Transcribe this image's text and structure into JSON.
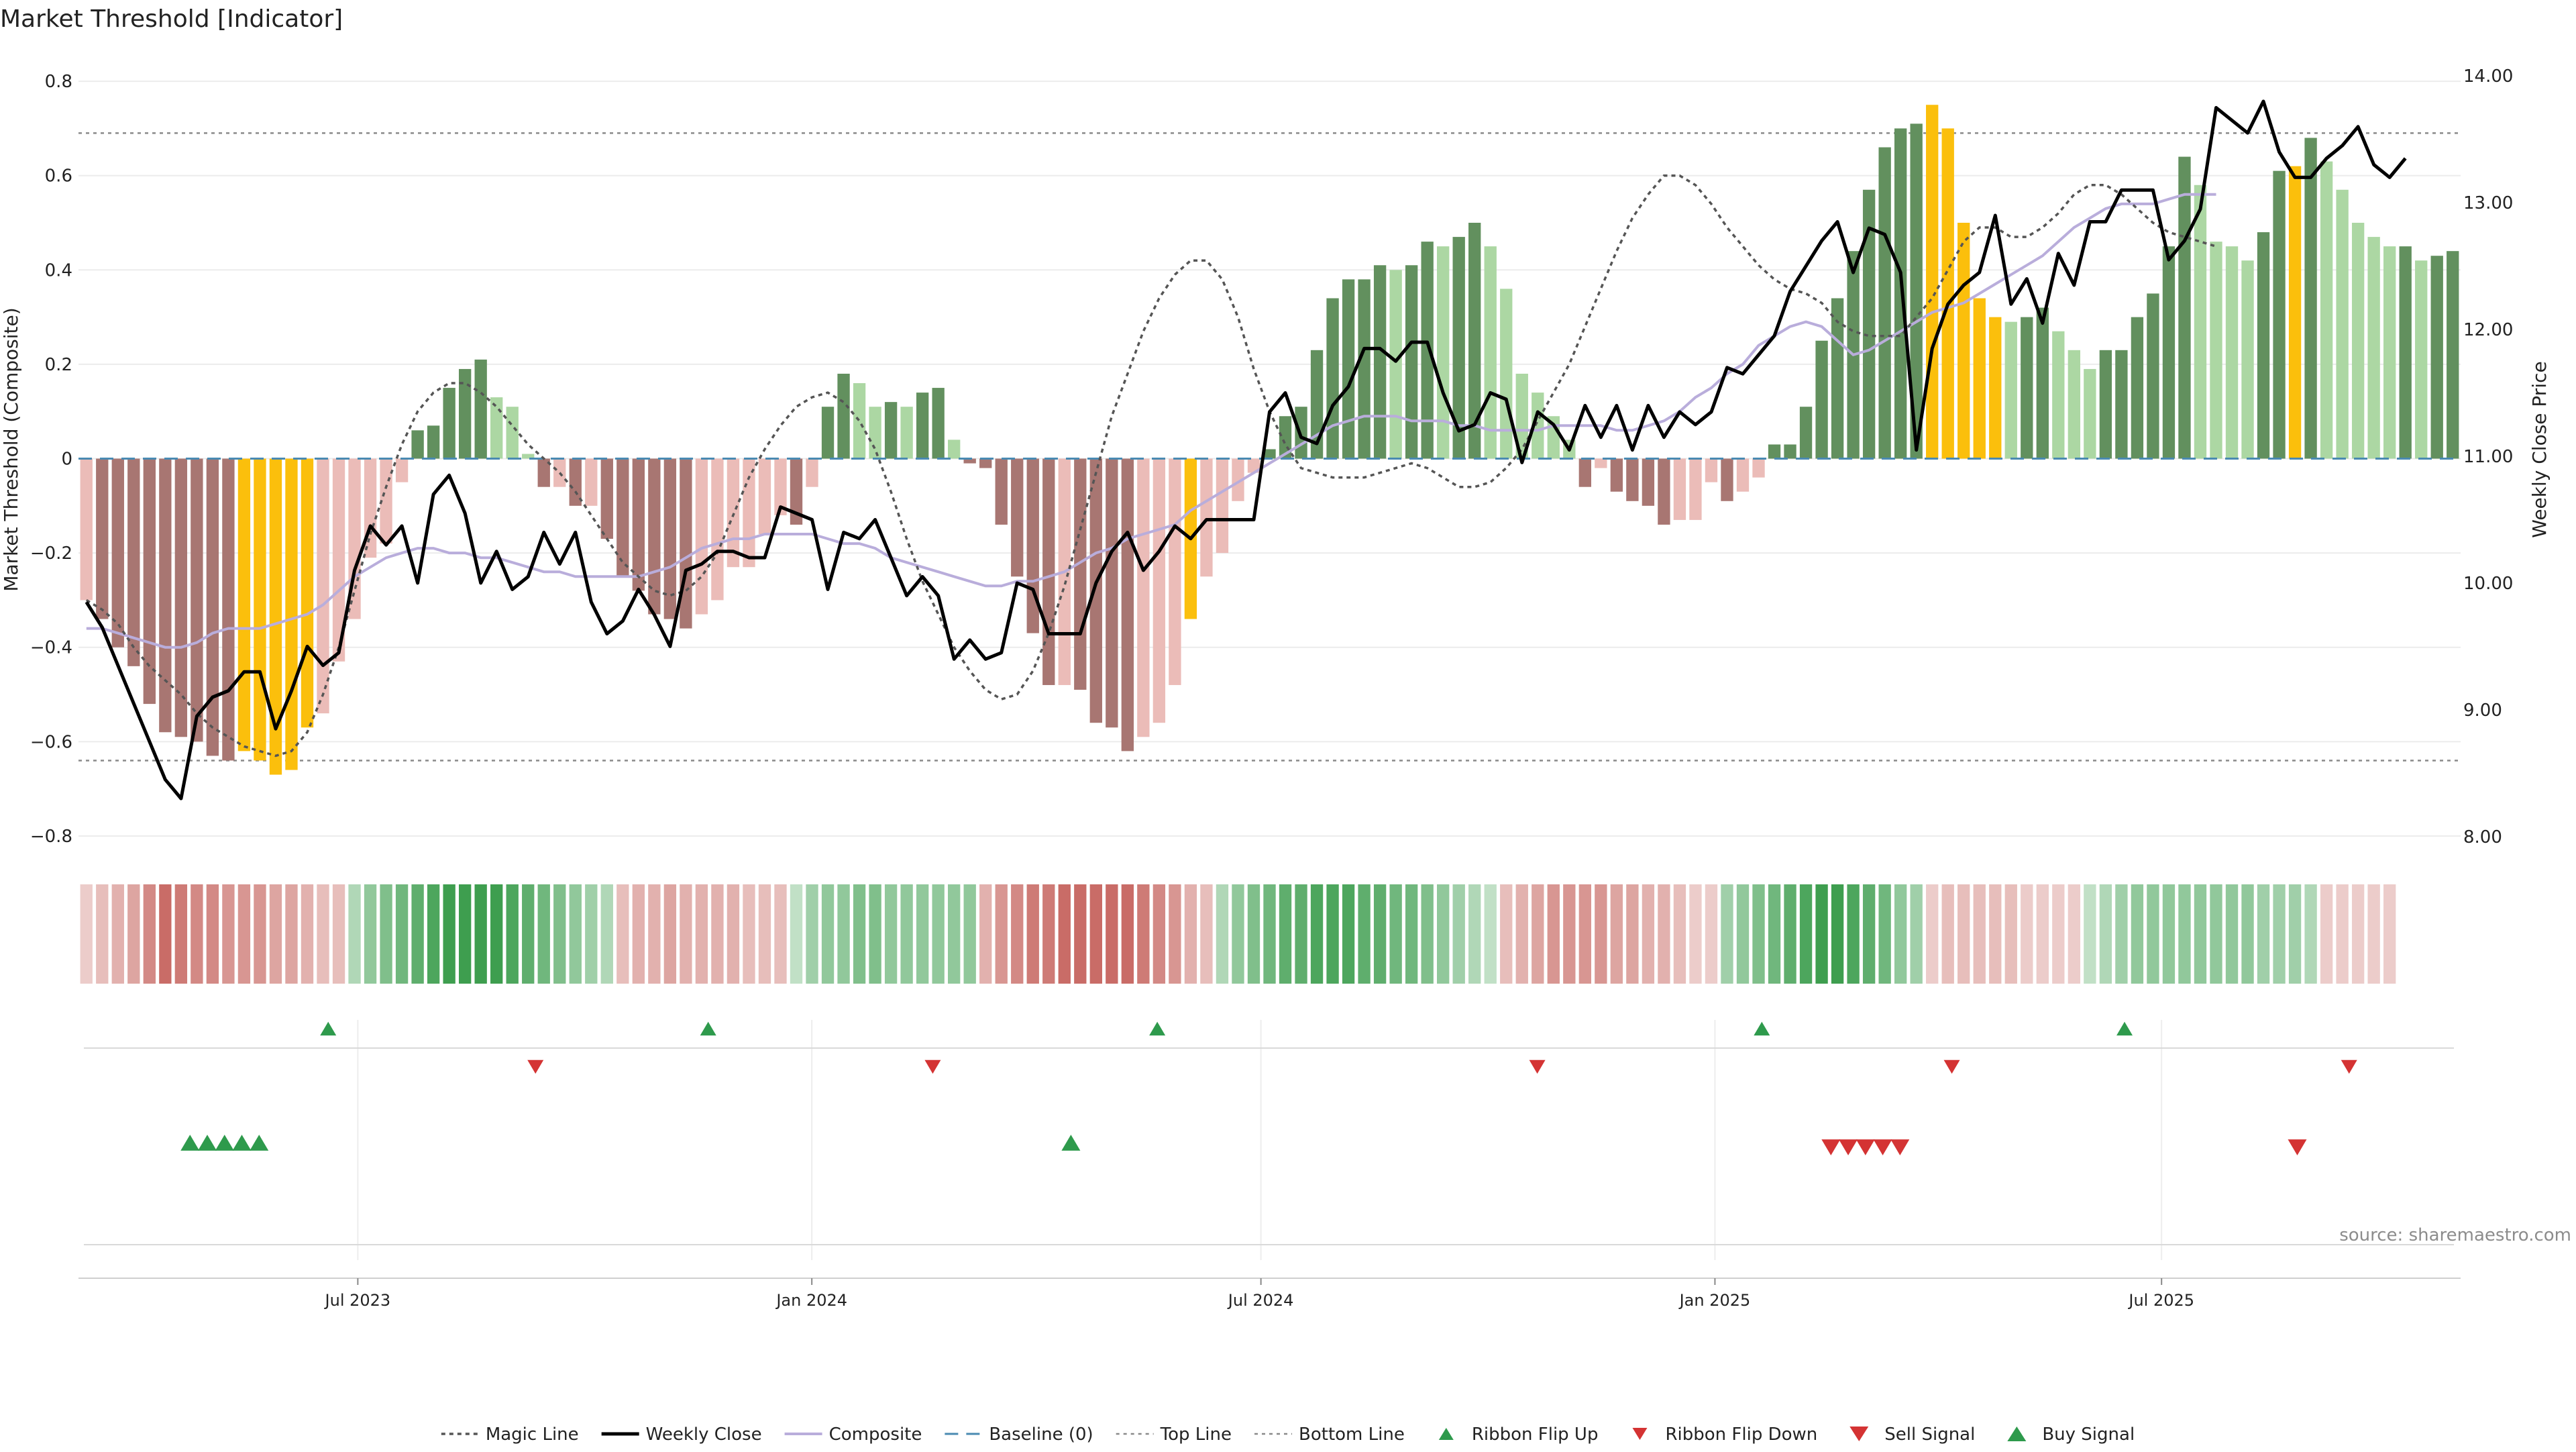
{
  "chart_data": {
    "type": "bar",
    "title": "Market Threshold [Indicator]",
    "ylabel": "Market Threshold (Composite)",
    "y2label": "Weekly Close Price",
    "ylim": [
      -0.82,
      0.83
    ],
    "y2lim": [
      7.93,
      14.07
    ],
    "yticks": [
      "0.8",
      "0.6",
      "0.4",
      "0.2",
      "0",
      "−0.2",
      "−0.4",
      "−0.6",
      "−0.8"
    ],
    "y2ticks": [
      "14.00",
      "13.00",
      "12.00",
      "11.00",
      "10.00",
      "9.00",
      "8.00"
    ],
    "x_start": "2023-03-13",
    "x_end": "2025-10-27",
    "xticks": [
      {
        "date": "2023-07-01",
        "label": "Jul 2023"
      },
      {
        "date": "2024-01-01",
        "label": "Jan 2024"
      },
      {
        "date": "2024-07-01",
        "label": "Jul 2024"
      },
      {
        "date": "2025-01-01",
        "label": "Jan 2025"
      },
      {
        "date": "2025-07-01",
        "label": "Jul 2025"
      }
    ],
    "top_line": 0.69,
    "bottom_line": -0.64,
    "baseline": 0,
    "composite": [
      -0.36,
      -0.36,
      -0.37,
      -0.38,
      -0.39,
      -0.4,
      -0.4,
      -0.39,
      -0.37,
      -0.36,
      -0.36,
      -0.36,
      -0.35,
      -0.34,
      -0.33,
      -0.31,
      -0.28,
      -0.25,
      -0.23,
      -0.21,
      -0.2,
      -0.19,
      -0.19,
      -0.2,
      -0.2,
      -0.21,
      -0.21,
      -0.22,
      -0.23,
      -0.24,
      -0.24,
      -0.25,
      -0.25,
      -0.25,
      -0.25,
      -0.25,
      -0.24,
      -0.23,
      -0.21,
      -0.19,
      -0.18,
      -0.17,
      -0.17,
      -0.16,
      -0.16,
      -0.16,
      -0.16,
      -0.17,
      -0.18,
      -0.18,
      -0.19,
      -0.21,
      -0.22,
      -0.23,
      -0.24,
      -0.25,
      -0.26,
      -0.27,
      -0.27,
      -0.26,
      -0.26,
      -0.25,
      -0.24,
      -0.22,
      -0.2,
      -0.19,
      -0.17,
      -0.16,
      -0.15,
      -0.14,
      -0.11,
      -0.09,
      -0.07,
      -0.05,
      -0.03,
      -0.01,
      0.01,
      0.03,
      0.05,
      0.07,
      0.08,
      0.09,
      0.09,
      0.09,
      0.08,
      0.08,
      0.08,
      0.07,
      0.07,
      0.06,
      0.06,
      0.06,
      0.06,
      0.07,
      0.07,
      0.07,
      0.07,
      0.06,
      0.06,
      0.07,
      0.08,
      0.1,
      0.13,
      0.15,
      0.18,
      0.2,
      0.24,
      0.26,
      0.28,
      0.29,
      0.28,
      0.25,
      0.22,
      0.23,
      0.25,
      0.27,
      0.29,
      0.31,
      0.32,
      0.33,
      0.35,
      0.37,
      0.39,
      0.41,
      0.43,
      0.46,
      0.49,
      0.51,
      0.53,
      0.54,
      0.54,
      0.54,
      0.55,
      0.56,
      0.56,
      0.56
    ],
    "magic_line": [
      -0.3,
      -0.32,
      -0.35,
      -0.4,
      -0.44,
      -0.47,
      -0.5,
      -0.54,
      -0.57,
      -0.59,
      -0.61,
      -0.62,
      -0.63,
      -0.62,
      -0.58,
      -0.5,
      -0.4,
      -0.28,
      -0.16,
      -0.06,
      0.03,
      0.1,
      0.14,
      0.16,
      0.16,
      0.14,
      0.11,
      0.07,
      0.03,
      0,
      -0.03,
      -0.07,
      -0.12,
      -0.17,
      -0.22,
      -0.25,
      -0.28,
      -0.29,
      -0.28,
      -0.25,
      -0.2,
      -0.12,
      -0.04,
      0.02,
      0.07,
      0.11,
      0.13,
      0.14,
      0.12,
      0.08,
      0.02,
      -0.07,
      -0.17,
      -0.26,
      -0.33,
      -0.4,
      -0.45,
      -0.49,
      -0.51,
      -0.5,
      -0.45,
      -0.37,
      -0.27,
      -0.15,
      -0.03,
      0.09,
      0.18,
      0.27,
      0.34,
      0.39,
      0.42,
      0.42,
      0.38,
      0.3,
      0.19,
      0.1,
      0.03,
      -0.02,
      -0.03,
      -0.04,
      -0.04,
      -0.04,
      -0.03,
      -0.02,
      -0.01,
      -0.02,
      -0.04,
      -0.06,
      -0.06,
      -0.05,
      -0.02,
      0.02,
      0.08,
      0.14,
      0.2,
      0.28,
      0.36,
      0.44,
      0.51,
      0.56,
      0.6,
      0.6,
      0.58,
      0.54,
      0.49,
      0.45,
      0.41,
      0.38,
      0.36,
      0.35,
      0.33,
      0.29,
      0.27,
      0.26,
      0.26,
      0.26,
      0.3,
      0.34,
      0.4,
      0.46,
      0.49,
      0.49,
      0.47,
      0.47,
      0.49,
      0.52,
      0.56,
      0.58,
      0.58,
      0.56,
      0.53,
      0.5,
      0.48,
      0.47,
      0.46,
      0.45
    ],
    "weekly_close": [
      9.85,
      9.65,
      9.35,
      9.05,
      8.75,
      8.45,
      8.3,
      8.95,
      9.1,
      9.15,
      9.3,
      9.3,
      8.85,
      9.15,
      9.5,
      9.35,
      9.45,
      10.1,
      10.45,
      10.3,
      10.45,
      10.0,
      10.7,
      10.85,
      10.55,
      10.0,
      10.25,
      9.95,
      10.05,
      10.4,
      10.15,
      10.4,
      9.85,
      9.6,
      9.7,
      9.95,
      9.75,
      9.5,
      10.1,
      10.15,
      10.25,
      10.25,
      10.2,
      10.2,
      10.6,
      10.55,
      10.5,
      9.95,
      10.4,
      10.35,
      10.5,
      10.2,
      9.9,
      10.05,
      9.9,
      9.4,
      9.55,
      9.4,
      9.45,
      10.0,
      9.95,
      9.6,
      9.6,
      9.6,
      10.0,
      10.25,
      10.4,
      10.1,
      10.25,
      10.45,
      10.35,
      10.5,
      10.5,
      10.5,
      10.5,
      11.35,
      11.5,
      11.15,
      11.1,
      11.4,
      11.55,
      11.85,
      11.85,
      11.75,
      11.9,
      11.9,
      11.5,
      11.2,
      11.25,
      11.5,
      11.45,
      10.95,
      11.35,
      11.25,
      11.05,
      11.4,
      11.15,
      11.4,
      11.05,
      11.4,
      11.15,
      11.35,
      11.25,
      11.35,
      11.7,
      11.65,
      11.8,
      11.95,
      12.3,
      12.5,
      12.7,
      12.85,
      12.45,
      12.8,
      12.75,
      12.45,
      11.05,
      11.85,
      12.2,
      12.35,
      12.45,
      12.9,
      12.2,
      12.4,
      12.05,
      12.6,
      12.35,
      12.85,
      12.85,
      13.1,
      13.1,
      13.1,
      12.55,
      12.7,
      12.95,
      13.75,
      13.65,
      13.55,
      13.8,
      13.4,
      13.2,
      13.2,
      13.35,
      13.45,
      13.6,
      13.3,
      13.2,
      13.35
    ],
    "bars": [
      -0.3,
      -0.34,
      -0.4,
      -0.44,
      -0.52,
      -0.58,
      -0.59,
      -0.6,
      -0.63,
      -0.64,
      -0.62,
      -0.64,
      -0.67,
      -0.66,
      -0.57,
      -0.54,
      -0.43,
      -0.34,
      -0.21,
      -0.18,
      -0.05,
      0.06,
      0.07,
      0.15,
      0.19,
      0.21,
      0.13,
      0.11,
      0.01,
      -0.06,
      -0.06,
      -0.1,
      -0.1,
      -0.17,
      -0.25,
      -0.28,
      -0.33,
      -0.34,
      -0.36,
      -0.33,
      -0.3,
      -0.23,
      -0.23,
      -0.16,
      -0.12,
      -0.14,
      -0.06,
      0.11,
      0.18,
      0.16,
      0.11,
      0.12,
      0.11,
      0.14,
      0.15,
      0.04,
      -0.01,
      -0.02,
      -0.14,
      -0.25,
      -0.37,
      -0.48,
      -0.48,
      -0.49,
      -0.56,
      -0.57,
      -0.62,
      -0.59,
      -0.56,
      -0.48,
      -0.34,
      -0.25,
      -0.2,
      -0.09,
      -0.03,
      0.02,
      0.09,
      0.11,
      0.23,
      0.34,
      0.38,
      0.38,
      0.41,
      0.4,
      0.41,
      0.46,
      0.45,
      0.47,
      0.5,
      0.45,
      0.36,
      0.18,
      0.14,
      0.09,
      0.04,
      -0.06,
      -0.02,
      -0.07,
      -0.09,
      -0.1,
      -0.14,
      -0.13,
      -0.13,
      -0.05,
      -0.09,
      -0.07,
      -0.04,
      0.03,
      0.03,
      0.11,
      0.25,
      0.34,
      0.44,
      0.57,
      0.66,
      0.7,
      0.71,
      0.75,
      0.7,
      0.5,
      0.34,
      0.3,
      0.29,
      0.3,
      0.32,
      0.27,
      0.23,
      0.19,
      0.23,
      0.23,
      0.3,
      0.35,
      0.45,
      0.64,
      0.58,
      0.46,
      0.45,
      0.42,
      0.48,
      0.61,
      0.62,
      0.68,
      0.63,
      0.57,
      0.5,
      0.47,
      0.45,
      0.45,
      0.42,
      0.43,
      0.44
    ],
    "ribbon_levels": [
      -0.2,
      -0.3,
      -0.4,
      -0.5,
      -0.7,
      -0.9,
      -0.8,
      -0.7,
      -0.7,
      -0.6,
      -0.6,
      -0.6,
      -0.5,
      -0.5,
      -0.4,
      -0.3,
      -0.3,
      0.3,
      0.5,
      0.6,
      0.7,
      0.8,
      0.9,
      1.0,
      1.0,
      1.0,
      1.0,
      0.9,
      0.8,
      0.7,
      0.6,
      0.5,
      0.4,
      0.3,
      -0.3,
      -0.4,
      -0.4,
      -0.5,
      -0.4,
      -0.4,
      -0.4,
      -0.4,
      -0.3,
      -0.3,
      -0.3,
      0.2,
      0.4,
      0.5,
      0.5,
      0.6,
      0.6,
      0.5,
      0.5,
      0.5,
      0.5,
      0.5,
      0.5,
      -0.4,
      -0.6,
      -0.7,
      -0.8,
      -0.8,
      -0.9,
      -0.9,
      -0.9,
      -0.9,
      -0.9,
      -0.8,
      -0.7,
      -0.6,
      -0.4,
      -0.3,
      0.3,
      0.5,
      0.6,
      0.7,
      0.8,
      0.8,
      0.9,
      0.9,
      0.9,
      0.8,
      0.8,
      0.7,
      0.7,
      0.6,
      0.5,
      0.4,
      0.3,
      0.2,
      -0.3,
      -0.4,
      -0.5,
      -0.6,
      -0.6,
      -0.6,
      -0.6,
      -0.5,
      -0.5,
      -0.4,
      -0.4,
      -0.3,
      -0.2,
      -0.2,
      0.4,
      0.5,
      0.6,
      0.7,
      0.8,
      0.9,
      1.0,
      1.0,
      0.9,
      0.8,
      0.7,
      0.5,
      0.4,
      -0.2,
      -0.3,
      -0.3,
      -0.3,
      -0.3,
      -0.3,
      -0.2,
      -0.2,
      -0.2,
      -0.2,
      0.2,
      0.3,
      0.4,
      0.5,
      0.5,
      0.5,
      0.5,
      0.5,
      0.5,
      0.5,
      0.5,
      0.4,
      0.4,
      0.4,
      0.3,
      -0.2,
      -0.2,
      -0.2,
      -0.2,
      -0.2
    ],
    "ribbon_flip_up": [
      "2023-06-19",
      "2023-11-20",
      "2024-05-20",
      "2025-01-20",
      "2025-06-16"
    ],
    "ribbon_flip_down": [
      "2023-09-11",
      "2024-02-19",
      "2024-10-21",
      "2025-04-07",
      "2025-09-15"
    ],
    "buy_signal": [
      "2023-04-24",
      "2023-05-01",
      "2023-05-08",
      "2023-05-15",
      "2023-05-22",
      "2024-04-15"
    ],
    "sell_signal": [
      "2025-02-17",
      "2025-02-24",
      "2025-03-03",
      "2025-03-10",
      "2025-03-17",
      "2025-08-25"
    ],
    "legend": {
      "position": "bottom",
      "items": [
        {
          "label": "Magic Line",
          "kind": "magic"
        },
        {
          "label": "Weekly Close",
          "kind": "close"
        },
        {
          "label": "Composite",
          "kind": "composite"
        },
        {
          "label": "Baseline (0)",
          "kind": "baseline"
        },
        {
          "label": "Top Line",
          "kind": "topline"
        },
        {
          "label": "Bottom Line",
          "kind": "bottomline"
        },
        {
          "label": "Ribbon Flip Up",
          "kind": "flipup"
        },
        {
          "label": "Ribbon Flip Down",
          "kind": "flipdown"
        },
        {
          "label": "Sell Signal",
          "kind": "sell"
        },
        {
          "label": "Buy Signal",
          "kind": "buy"
        }
      ]
    },
    "source_note": "source: sharemaestro.com",
    "colors": {
      "bar_strong_pos": "#62905e",
      "bar_weak_pos": "#acd7a3",
      "bar_strong_neg": "#a87672",
      "bar_weak_neg": "#ebbcb8",
      "bar_extreme": "#fbbf0c",
      "close_line": "#000000",
      "composite_line": "#b9addb",
      "magic_line": "#555555",
      "baseline": "#4a8ab2",
      "reference_lines": "#8a8a8a",
      "flip_up": "#2e9a4c",
      "flip_down": "#d43333",
      "buy": "#2e9a4c",
      "sell": "#d43333",
      "ribbon_pos": "#3e9e4f",
      "ribbon_neg": "#c4605a"
    },
    "grid": true
  }
}
